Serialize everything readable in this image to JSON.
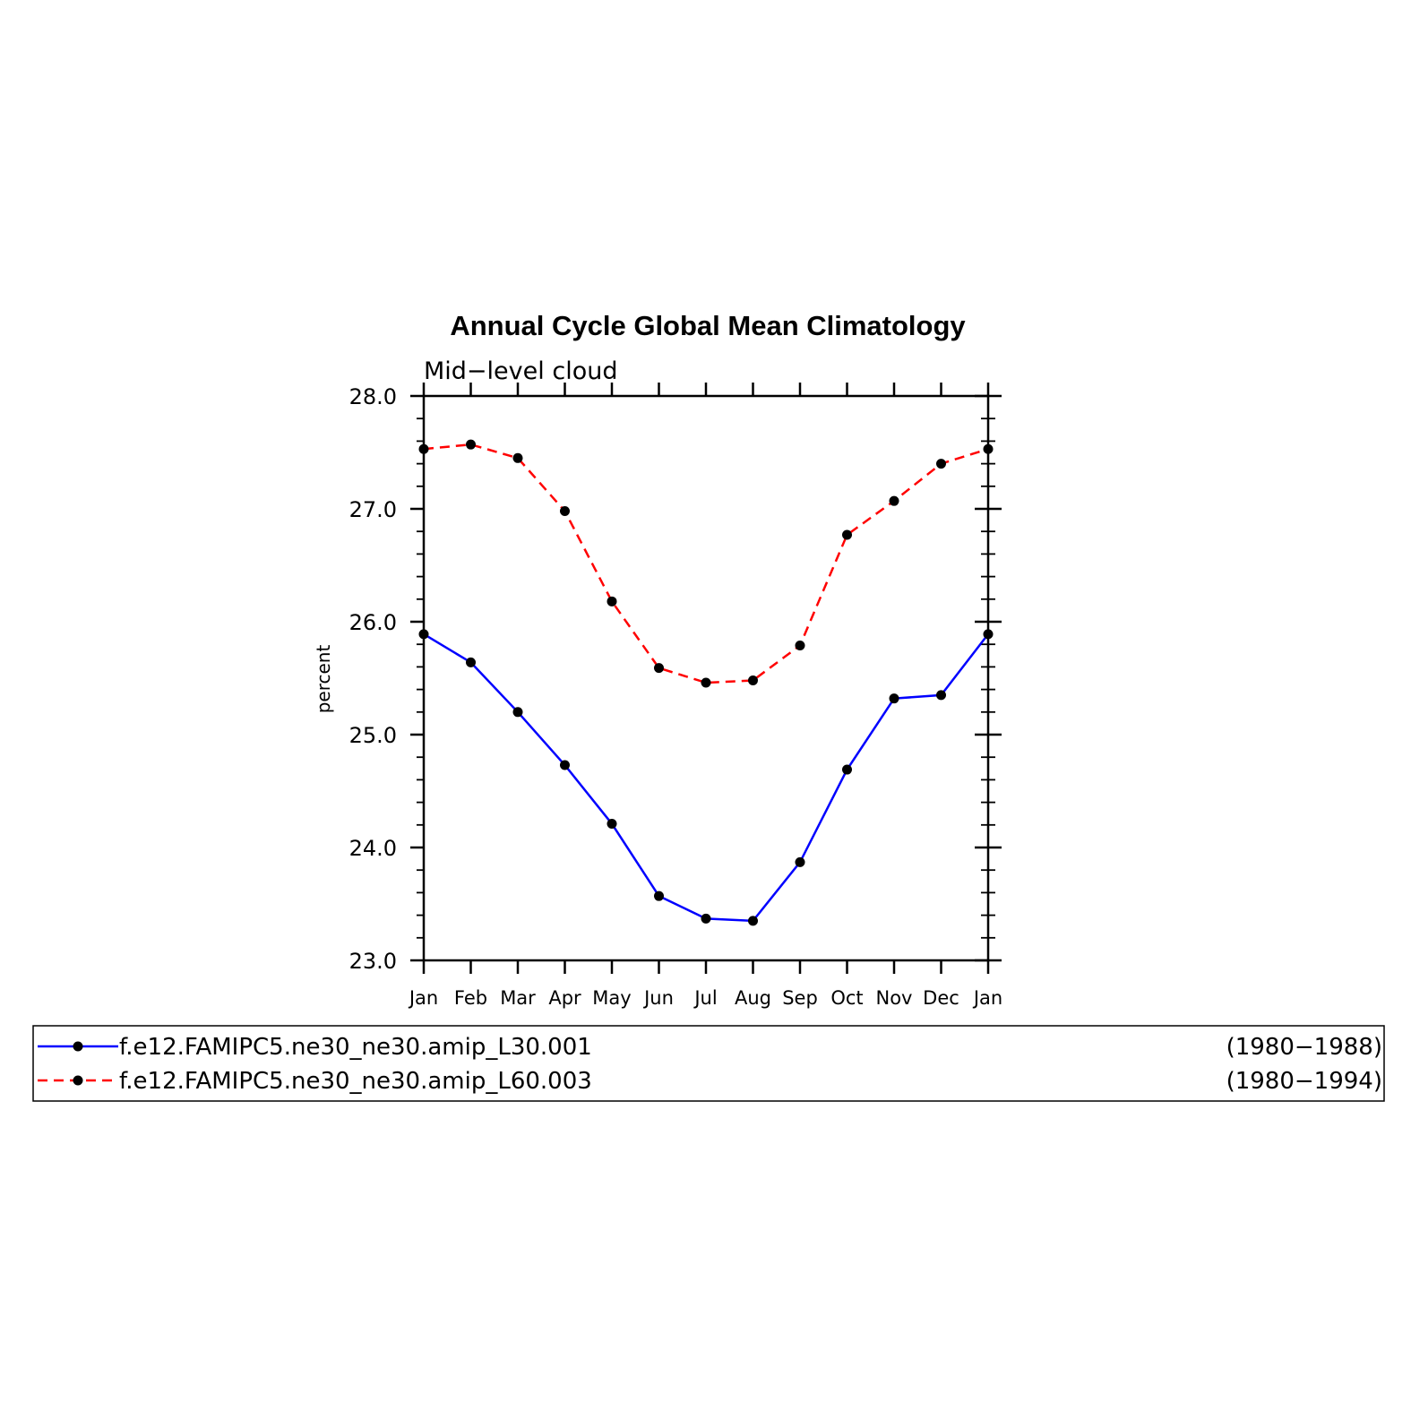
{
  "chart_data": {
    "type": "line",
    "title": "Annual Cycle Global Mean Climatology",
    "subtitle": "Mid−level cloud",
    "ylabel": "percent",
    "xlabel": "",
    "categories": [
      "Jan",
      "Feb",
      "Mar",
      "Apr",
      "May",
      "Jun",
      "Jul",
      "Aug",
      "Sep",
      "Oct",
      "Nov",
      "Dec",
      "Jan"
    ],
    "ylim": [
      23.0,
      28.0
    ],
    "yticks": [
      "23.0",
      "24.0",
      "25.0",
      "26.0",
      "27.0",
      "28.0"
    ],
    "legend_position": "bottom",
    "series": [
      {
        "name": "f.e12.FAMIPC5.ne30_ne30.amip_L30.001",
        "period": "(1980−1988)",
        "color": "#0000ff",
        "dash": "solid",
        "values": [
          25.89,
          25.64,
          25.2,
          24.73,
          24.21,
          23.57,
          23.37,
          23.35,
          23.87,
          24.69,
          25.32,
          25.35,
          25.89
        ]
      },
      {
        "name": "f.e12.FAMIPC5.ne30_ne30.amip_L60.003",
        "period": "(1980−1994)",
        "color": "#ff0000",
        "dash": "dashed",
        "values": [
          27.53,
          27.57,
          27.45,
          26.98,
          26.18,
          25.59,
          25.46,
          25.48,
          25.79,
          26.77,
          27.07,
          27.4,
          27.53
        ]
      }
    ]
  }
}
